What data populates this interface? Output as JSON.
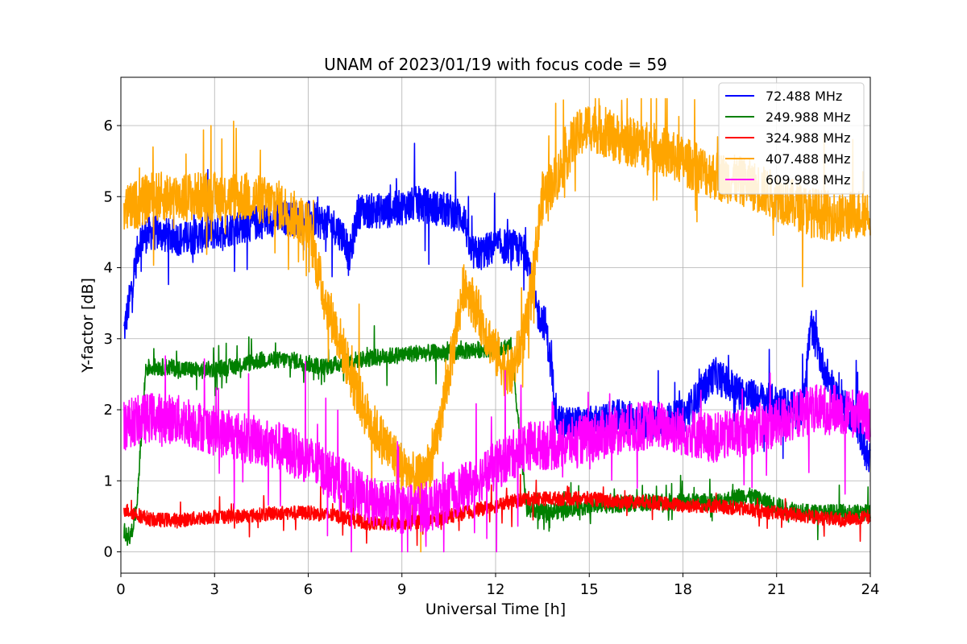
{
  "chart_data": {
    "type": "line",
    "title": "UNAM of 2023/01/19 with focus code = 59",
    "xlabel": "Universal Time [h]",
    "ylabel": "Y-factor [dB]",
    "xlim": [
      0,
      24
    ],
    "ylim": [
      -0.3,
      6.68
    ],
    "xticks": [
      "0",
      "3",
      "6",
      "9",
      "12",
      "15",
      "18",
      "21",
      "24"
    ],
    "yticks": [
      "0",
      "1",
      "2",
      "3",
      "4",
      "5",
      "6"
    ],
    "grid": true,
    "legend_position": "top-right",
    "series": [
      {
        "name": "  72.488 MHz",
        "color": "#0000ff",
        "noise": 0.25,
        "x": [
          0.1,
          0.3,
          0.6,
          1.0,
          2.0,
          3.0,
          4.0,
          5.0,
          6.0,
          6.8,
          7.2,
          7.3,
          7.6,
          8.5,
          9.5,
          10.5,
          11.0,
          11.2,
          11.5,
          12.0,
          12.5,
          13.0,
          13.3,
          13.6,
          14.0,
          15.0,
          16.0,
          17.0,
          18.0,
          18.5,
          19.0,
          20.0,
          21.0,
          21.8,
          22.1,
          22.5,
          23.0,
          23.5,
          24.0
        ],
        "y": [
          3.1,
          3.6,
          4.4,
          4.5,
          4.4,
          4.5,
          4.6,
          4.7,
          4.7,
          4.6,
          4.4,
          4.1,
          4.8,
          4.8,
          4.9,
          4.8,
          4.7,
          4.2,
          4.2,
          4.3,
          4.3,
          4.2,
          3.4,
          3.2,
          1.8,
          1.8,
          1.9,
          1.8,
          1.9,
          2.2,
          2.5,
          2.2,
          2.1,
          2.0,
          3.2,
          2.6,
          2.1,
          1.9,
          1.2
        ]
      },
      {
        "name": "249.988 MHz",
        "color": "#008000",
        "noise": 0.12,
        "x": [
          0.1,
          0.3,
          0.5,
          0.8,
          1.5,
          2.5,
          3.5,
          4.5,
          5.5,
          6.5,
          7.5,
          8.5,
          9.5,
          10.5,
          11.5,
          12.5,
          13.0,
          13.5,
          15.0,
          17.0,
          19.0,
          20.0,
          21.0,
          22.0,
          23.0,
          24.0
        ],
        "y": [
          0.3,
          0.2,
          0.6,
          2.6,
          2.6,
          2.55,
          2.6,
          2.7,
          2.7,
          2.6,
          2.7,
          2.75,
          2.8,
          2.8,
          2.85,
          2.9,
          0.6,
          0.55,
          0.65,
          0.7,
          0.7,
          0.8,
          0.65,
          0.55,
          0.55,
          0.55
        ]
      },
      {
        "name": "324.988 MHz",
        "color": "#ff0000",
        "noise": 0.1,
        "x": [
          0.1,
          1.0,
          2.0,
          3.0,
          4.0,
          5.0,
          6.0,
          7.0,
          8.0,
          9.0,
          10.0,
          11.0,
          12.0,
          13.0,
          14.0,
          15.0,
          16.0,
          17.0,
          18.0,
          19.0,
          20.0,
          21.0,
          22.0,
          23.0,
          24.0
        ],
        "y": [
          0.6,
          0.45,
          0.45,
          0.5,
          0.5,
          0.55,
          0.55,
          0.5,
          0.4,
          0.4,
          0.45,
          0.55,
          0.65,
          0.75,
          0.75,
          0.75,
          0.7,
          0.7,
          0.65,
          0.65,
          0.6,
          0.55,
          0.5,
          0.45,
          0.5
        ]
      },
      {
        "name": "407.488 MHz",
        "color": "#ffa500",
        "noise": 0.35,
        "x": [
          0.1,
          1.0,
          2.0,
          3.0,
          4.0,
          5.0,
          6.0,
          6.5,
          7.0,
          7.5,
          8.0,
          8.5,
          9.0,
          9.5,
          10.0,
          10.5,
          11.0,
          11.5,
          12.0,
          12.5,
          13.0,
          13.5,
          14.0,
          14.5,
          15.0,
          16.0,
          17.0,
          17.5,
          18.0,
          19.0,
          20.0,
          21.0,
          22.0,
          23.0,
          24.0
        ],
        "y": [
          4.8,
          5.0,
          5.0,
          5.0,
          5.0,
          4.9,
          4.6,
          3.6,
          3.0,
          2.3,
          1.8,
          1.5,
          1.2,
          1.0,
          1.3,
          2.5,
          3.8,
          3.3,
          2.8,
          2.5,
          3.2,
          5.0,
          5.3,
          5.8,
          6.0,
          5.8,
          5.7,
          5.6,
          5.5,
          5.3,
          5.2,
          5.0,
          4.8,
          4.7,
          4.8
        ]
      },
      {
        "name": "609.988 MHz",
        "color": "#ff00ff",
        "noise": 0.35,
        "x": [
          0.1,
          1.0,
          2.0,
          3.0,
          4.0,
          5.0,
          6.0,
          7.0,
          8.0,
          9.0,
          10.0,
          11.0,
          12.0,
          13.0,
          14.0,
          15.0,
          16.0,
          17.0,
          18.0,
          19.0,
          20.0,
          21.0,
          22.0,
          23.0,
          24.0
        ],
        "y": [
          1.8,
          1.9,
          1.85,
          1.7,
          1.6,
          1.5,
          1.3,
          1.0,
          0.7,
          0.6,
          0.65,
          0.9,
          1.2,
          1.5,
          1.5,
          1.6,
          1.7,
          1.8,
          1.7,
          1.6,
          1.7,
          1.8,
          2.0,
          2.0,
          1.9
        ]
      }
    ]
  }
}
